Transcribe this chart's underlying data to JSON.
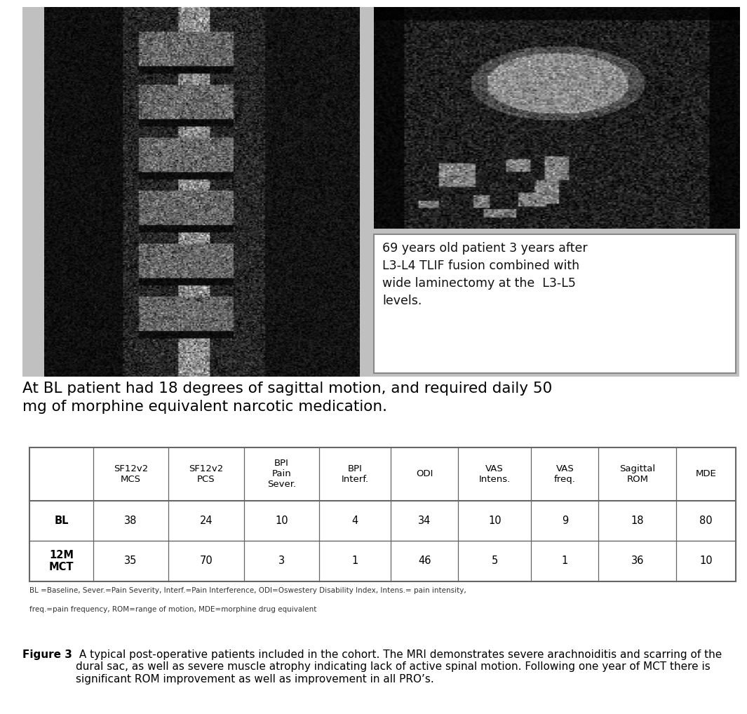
{
  "caption_bold": "Figure 3",
  "caption_text": " A typical post-operative patients included in the cohort. The MRI demonstrates severe arachnoiditis and scarring of the dural sac, as well as severe muscle atrophy indicating lack of active spinal motion. Following one year of MCT there is significant ROM improvement as well as improvement in all PRO’s.",
  "subtitle": "At BL patient had 18 degrees of sagittal motion, and required daily 50\nmg of morphine equivalent narcotic medication.",
  "image_caption": "69 years old patient 3 years after\nL3-L4 TLIF fusion combined with\nwide laminectomy at the  L3-L5\nlevels.",
  "table_headers": [
    "",
    "SF12v2\nMCS",
    "SF12v2\nPCS",
    "BPI\nPain\nSever.",
    "BPI\nInterf.",
    "ODI",
    "VAS\nIntens.",
    "VAS\nfreq.",
    "Sagittal\nROM",
    "MDE"
  ],
  "table_rows": [
    [
      "BL",
      "38",
      "24",
      "10",
      "4",
      "34",
      "10",
      "9",
      "18",
      "80"
    ],
    [
      "12M\nMCT",
      "35",
      "70",
      "3",
      "1",
      "46",
      "5",
      "1",
      "36",
      "10"
    ]
  ],
  "footnote_line1": "BL =Baseline, Sever.=Pain Severity, Interf.=Pain Interference, ODI=Oswestery Disability Index, Intens.= pain intensity,",
  "footnote_line2": "freq.=pain frequency, ROM=range of motion, MDE=morphine drug equivalent",
  "bg_color": "#ffffff",
  "table_border_color": "#666666",
  "text_color": "#000000",
  "img_area_bg": "#c8c8c8",
  "left_mri_dark": "#222222",
  "right_mri_dark": "#1a1a1a"
}
